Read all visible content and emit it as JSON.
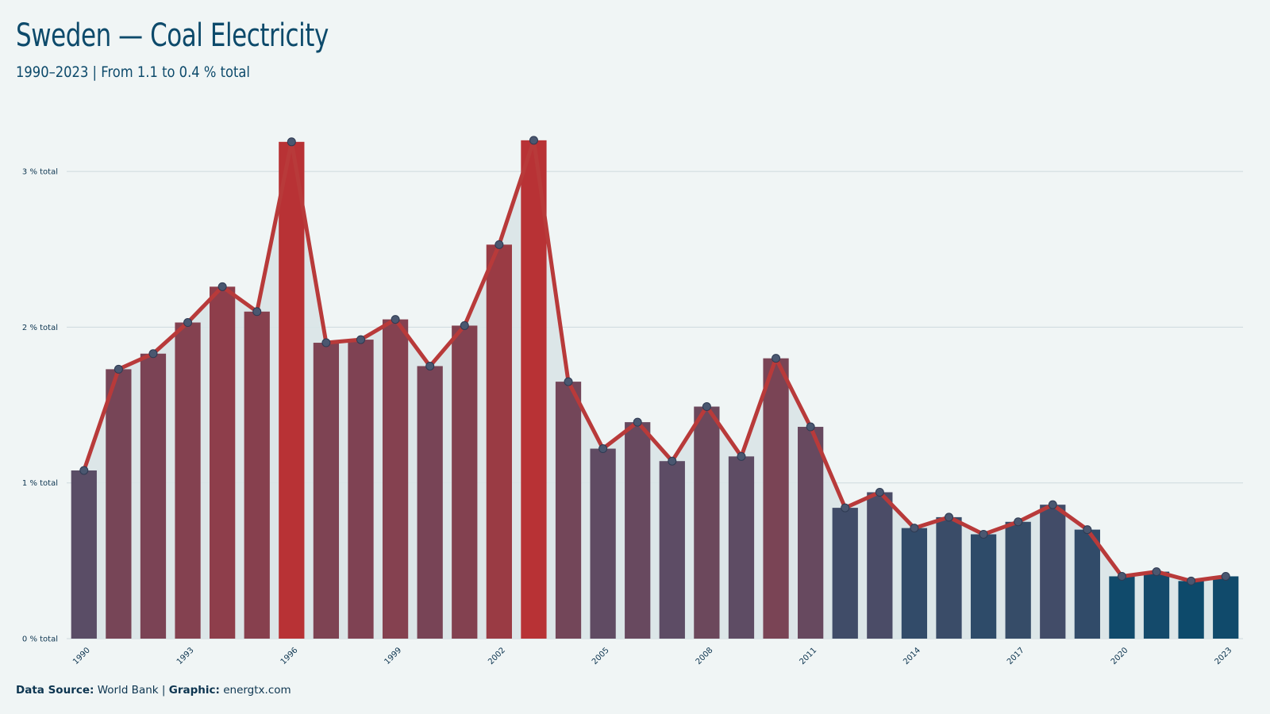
{
  "header": {
    "title": "Sweden — Coal Electricity",
    "subtitle": "1990–2023 | From 1.1 to 0.4 % total"
  },
  "footer": {
    "source_label": "Data Source:",
    "source_value": "World Bank",
    "separator": "|",
    "graphic_label": "Graphic:",
    "graphic_value": "energtx.com"
  },
  "colors": {
    "background": "#f0f5f5",
    "line": "#b83a3a",
    "high": "#b83235",
    "mid": "#5a4d66",
    "low": "#0d4a6b",
    "area": "#d9e4e7",
    "grid": "#ced9dd",
    "marker_fill": "#4a5770"
  },
  "chart_data": {
    "type": "bar",
    "x": [
      1990,
      1991,
      1992,
      1993,
      1994,
      1995,
      1996,
      1997,
      1998,
      1999,
      2000,
      2001,
      2002,
      2003,
      2004,
      2005,
      2006,
      2007,
      2008,
      2009,
      2010,
      2011,
      2012,
      2013,
      2014,
      2015,
      2016,
      2017,
      2018,
      2019,
      2020,
      2021,
      2022,
      2023
    ],
    "xtick_labels": [
      "1990",
      "1993",
      "1996",
      "1999",
      "2002",
      "2005",
      "2008",
      "2011",
      "2014",
      "2017",
      "2020",
      "2023"
    ],
    "series": [
      {
        "values": [
          1.08,
          1.73,
          1.83,
          2.03,
          2.26,
          2.1,
          3.19,
          1.9,
          1.92,
          2.05,
          1.75,
          2.01,
          2.53,
          3.2,
          1.65,
          1.22,
          1.39,
          1.14,
          1.49,
          1.17,
          1.8,
          1.36,
          0.84,
          0.94,
          0.71,
          0.78,
          0.67,
          0.75,
          0.86,
          0.7,
          0.4,
          0.43,
          0.37,
          0.4
        ]
      }
    ],
    "overlay": "line-with-markers",
    "yticks": [
      0,
      1,
      2,
      3
    ],
    "ytick_labels": [
      "0 % total",
      "1 % total",
      "2 % total",
      "3 % total"
    ],
    "ylim": [
      0,
      3.3
    ],
    "grid": true,
    "legend": "none"
  }
}
